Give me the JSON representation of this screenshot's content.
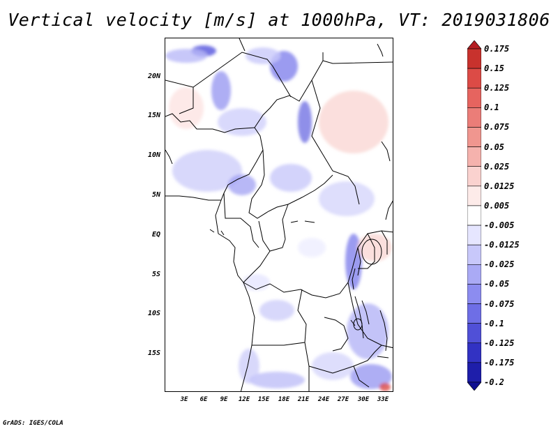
{
  "title": "Vertical velocity [m/s] at 1000hPa, VT: 2019031806",
  "credit": "GrADS: IGES/COLA",
  "lat_labels": [
    "20N",
    "15N",
    "10N",
    "5N",
    "EQ",
    "5S",
    "10S",
    "15S"
  ],
  "lon_labels": [
    "3E",
    "6E",
    "9E",
    "12E",
    "15E",
    "18E",
    "21E",
    "24E",
    "27E",
    "30E",
    "33E"
  ],
  "colorbar": {
    "labels": [
      "0.175",
      "0.15",
      "0.125",
      "0.1",
      "0.075",
      "0.05",
      "0.025",
      "0.0125",
      "0.005",
      "-0.005",
      "-0.0125",
      "-0.025",
      "-0.05",
      "-0.075",
      "-0.1",
      "-0.125",
      "-0.175",
      "-0.2"
    ],
    "colors": [
      "#b41e23",
      "#c8322d",
      "#dc4b46",
      "#e6645f",
      "#eb7d78",
      "#f0968f",
      "#f5b2ad",
      "#fad2cf",
      "#fdebe9",
      "#ffffff",
      "#e6e6ff",
      "#c8c8fa",
      "#aaaaf5",
      "#8c8cf0",
      "#6e6ee6",
      "#5050d7",
      "#3232c3",
      "#1e1eaa",
      "#0f0f91"
    ]
  }
}
